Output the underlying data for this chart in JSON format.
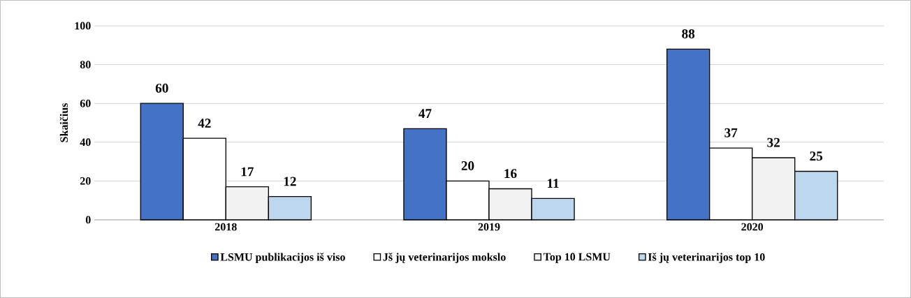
{
  "chart_data": {
    "type": "bar",
    "ylabel": "Skaičius",
    "categories": [
      "2018",
      "2019",
      "2020"
    ],
    "series": [
      {
        "name": "LSMU publikacijos iš viso",
        "color": "#4472c4",
        "values": [
          60,
          47,
          88
        ]
      },
      {
        "name": "Jš jų veterinarijos mokslo",
        "color": "#ffffff",
        "values": [
          42,
          20,
          37
        ]
      },
      {
        "name": "Top 10 LSMU",
        "color": "#f2f2f2",
        "values": [
          17,
          16,
          32
        ]
      },
      {
        "name": "Iš jų veterinarijos top 10",
        "color": "#bdd7ee",
        "values": [
          12,
          11,
          25
        ]
      }
    ],
    "ylim": [
      0,
      100
    ],
    "yticks": [
      0,
      20,
      40,
      60,
      80,
      100
    ],
    "grid": "y",
    "legend": "bottom",
    "data_labels": true
  }
}
